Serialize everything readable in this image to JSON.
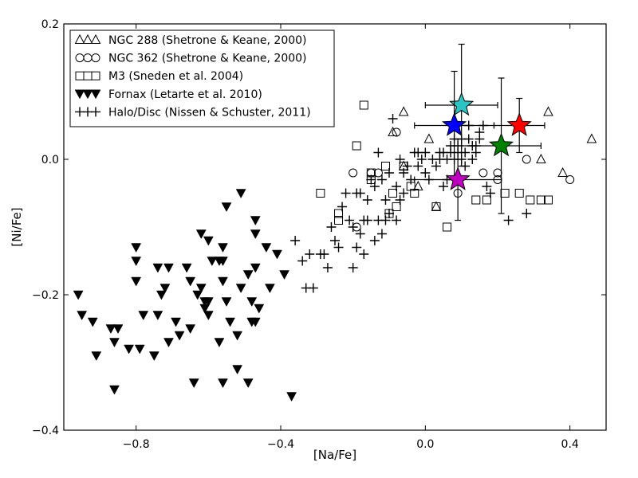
{
  "chart_data": {
    "type": "scatter",
    "xlabel": "[Na/Fe]",
    "ylabel": "[Ni/Fe]",
    "xlim": [
      -1.0,
      0.5
    ],
    "ylim": [
      -0.4,
      0.2
    ],
    "xticks": [
      -0.8,
      -0.4,
      0.0,
      0.4
    ],
    "xtick_labels": [
      "−0.8",
      "−0.4",
      "0.0",
      "0.4"
    ],
    "yticks": [
      -0.4,
      -0.2,
      0.0,
      0.2
    ],
    "ytick_labels": [
      "−0.4",
      "−0.2",
      "0.0",
      "0.2"
    ],
    "grid": false,
    "legend_position": "top-left",
    "series": [
      {
        "name": "NGC 288 (Shetrone & Keane, 2000)",
        "marker": "triangle-open",
        "color": "#000000",
        "x": [
          -0.06,
          -0.09,
          -0.06,
          -0.02,
          0.01,
          0.03,
          0.32,
          0.34,
          0.38,
          0.46
        ],
        "y": [
          0.07,
          0.04,
          -0.01,
          -0.04,
          0.03,
          -0.07,
          0.0,
          0.07,
          -0.02,
          0.03
        ]
      },
      {
        "name": "NGC 362 (Shetrone & Keane, 2000)",
        "marker": "circle-open",
        "color": "#000000",
        "x": [
          -0.2,
          -0.19,
          -0.15,
          -0.13,
          -0.08,
          0.09,
          0.16,
          0.2,
          0.2,
          0.28,
          0.4
        ],
        "y": [
          -0.02,
          -0.1,
          -0.02,
          -0.02,
          0.04,
          -0.05,
          -0.02,
          -0.03,
          -0.02,
          0.0,
          -0.03
        ]
      },
      {
        "name": "M3 (Sneden et al. 2004)",
        "marker": "square-open",
        "color": "#000000",
        "x": [
          -0.17,
          -0.19,
          -0.29,
          -0.24,
          -0.24,
          -0.15,
          -0.15,
          -0.11,
          -0.1,
          -0.09,
          -0.08,
          -0.06,
          -0.04,
          -0.03,
          0.03,
          0.06,
          0.14,
          0.17,
          0.22,
          0.26,
          0.29,
          0.32,
          0.34
        ],
        "y": [
          0.08,
          0.02,
          -0.05,
          -0.08,
          -0.09,
          -0.02,
          -0.03,
          -0.01,
          -0.08,
          -0.05,
          -0.07,
          -0.01,
          -0.04,
          -0.05,
          -0.07,
          -0.1,
          -0.06,
          -0.06,
          -0.05,
          -0.05,
          -0.06,
          -0.06,
          -0.06
        ]
      },
      {
        "name": "Fornax (Letarte et al. 2010)",
        "marker": "triangle-down-filled",
        "color": "#000000",
        "x": [
          -0.96,
          -0.95,
          -0.92,
          -0.91,
          -0.87,
          -0.86,
          -0.86,
          -0.85,
          -0.82,
          -0.8,
          -0.8,
          -0.8,
          -0.79,
          -0.78,
          -0.75,
          -0.74,
          -0.74,
          -0.73,
          -0.72,
          -0.71,
          -0.71,
          -0.69,
          -0.68,
          -0.66,
          -0.65,
          -0.65,
          -0.64,
          -0.63,
          -0.62,
          -0.62,
          -0.61,
          -0.61,
          -0.6,
          -0.6,
          -0.6,
          -0.59,
          -0.57,
          -0.57,
          -0.56,
          -0.56,
          -0.56,
          -0.56,
          -0.55,
          -0.55,
          -0.54,
          -0.52,
          -0.52,
          -0.51,
          -0.51,
          -0.49,
          -0.49,
          -0.48,
          -0.48,
          -0.47,
          -0.47,
          -0.47,
          -0.47,
          -0.46,
          -0.44,
          -0.43,
          -0.41,
          -0.39,
          -0.37
        ],
        "y": [
          -0.2,
          -0.23,
          -0.24,
          -0.29,
          -0.25,
          -0.34,
          -0.27,
          -0.25,
          -0.28,
          -0.13,
          -0.15,
          -0.18,
          -0.28,
          -0.23,
          -0.29,
          -0.16,
          -0.23,
          -0.2,
          -0.19,
          -0.27,
          -0.16,
          -0.24,
          -0.26,
          -0.16,
          -0.25,
          -0.18,
          -0.33,
          -0.2,
          -0.11,
          -0.19,
          -0.21,
          -0.22,
          -0.23,
          -0.21,
          -0.12,
          -0.15,
          -0.15,
          -0.27,
          -0.13,
          -0.15,
          -0.18,
          -0.33,
          -0.07,
          -0.21,
          -0.24,
          -0.26,
          -0.31,
          -0.05,
          -0.19,
          -0.33,
          -0.17,
          -0.21,
          -0.24,
          -0.24,
          -0.09,
          -0.11,
          -0.16,
          -0.22,
          -0.13,
          -0.19,
          -0.14,
          -0.17,
          -0.35
        ]
      },
      {
        "name": "Halo/Disc (Nissen & Schuster, 2011)",
        "marker": "plus",
        "color": "#000000",
        "x": [
          -0.36,
          -0.34,
          -0.33,
          -0.32,
          -0.31,
          -0.29,
          -0.28,
          -0.27,
          -0.26,
          -0.25,
          -0.24,
          -0.23,
          -0.22,
          -0.21,
          -0.2,
          -0.2,
          -0.19,
          -0.19,
          -0.18,
          -0.18,
          -0.17,
          -0.17,
          -0.16,
          -0.16,
          -0.15,
          -0.14,
          -0.14,
          -0.13,
          -0.13,
          -0.12,
          -0.12,
          -0.11,
          -0.11,
          -0.1,
          -0.1,
          -0.09,
          -0.08,
          -0.08,
          -0.07,
          -0.07,
          -0.06,
          -0.06,
          -0.05,
          -0.04,
          -0.03,
          -0.02,
          -0.02,
          -0.01,
          0.0,
          0.0,
          0.01,
          0.02,
          0.03,
          0.04,
          0.04,
          0.05,
          0.05,
          0.06,
          0.06,
          0.07,
          0.07,
          0.08,
          0.08,
          0.09,
          0.09,
          0.1,
          0.1,
          0.11,
          0.11,
          0.12,
          0.12,
          0.13,
          0.13,
          0.14,
          0.14,
          0.15,
          0.15,
          0.16,
          0.17,
          0.18,
          0.23,
          0.28
        ],
        "y": [
          -0.12,
          -0.15,
          -0.19,
          -0.14,
          -0.19,
          -0.14,
          -0.14,
          -0.16,
          -0.1,
          -0.12,
          -0.13,
          -0.07,
          -0.05,
          -0.09,
          -0.16,
          -0.1,
          -0.13,
          -0.05,
          -0.11,
          -0.05,
          -0.14,
          -0.09,
          -0.06,
          -0.09,
          -0.03,
          -0.04,
          -0.12,
          -0.09,
          0.01,
          -0.11,
          -0.03,
          -0.06,
          -0.09,
          -0.02,
          -0.08,
          0.06,
          -0.09,
          -0.04,
          -0.06,
          0.0,
          -0.02,
          -0.05,
          -0.01,
          -0.03,
          0.01,
          0.01,
          -0.01,
          0.0,
          -0.02,
          0.01,
          -0.03,
          0.0,
          -0.01,
          0.0,
          0.01,
          -0.04,
          0.01,
          0.0,
          -0.03,
          0.01,
          0.02,
          0.0,
          0.03,
          0.01,
          0.02,
          0.0,
          0.03,
          0.01,
          -0.01,
          0.03,
          0.05,
          0.0,
          0.02,
          0.01,
          0.02,
          0.03,
          0.04,
          0.05,
          -0.04,
          -0.05,
          -0.09,
          -0.08
        ]
      }
    ],
    "highlighted_points": [
      {
        "marker": "star",
        "color": "#2bc4c4",
        "x": 0.1,
        "y": 0.08,
        "xerr": 0.1,
        "yerr": 0.09
      },
      {
        "marker": "star",
        "color": "#0000ff",
        "x": 0.08,
        "y": 0.05,
        "xerr": 0.11,
        "yerr": 0.08
      },
      {
        "marker": "star",
        "color": "#ff0000",
        "x": 0.26,
        "y": 0.05,
        "xerr": 0.07,
        "yerr": 0.04
      },
      {
        "marker": "star",
        "color": "#008000",
        "x": 0.21,
        "y": 0.02,
        "xerr": 0.11,
        "yerr": 0.1
      },
      {
        "marker": "star",
        "color": "#c000c0",
        "x": 0.09,
        "y": -0.03,
        "xerr": 0.12,
        "yerr": 0.06
      }
    ]
  }
}
